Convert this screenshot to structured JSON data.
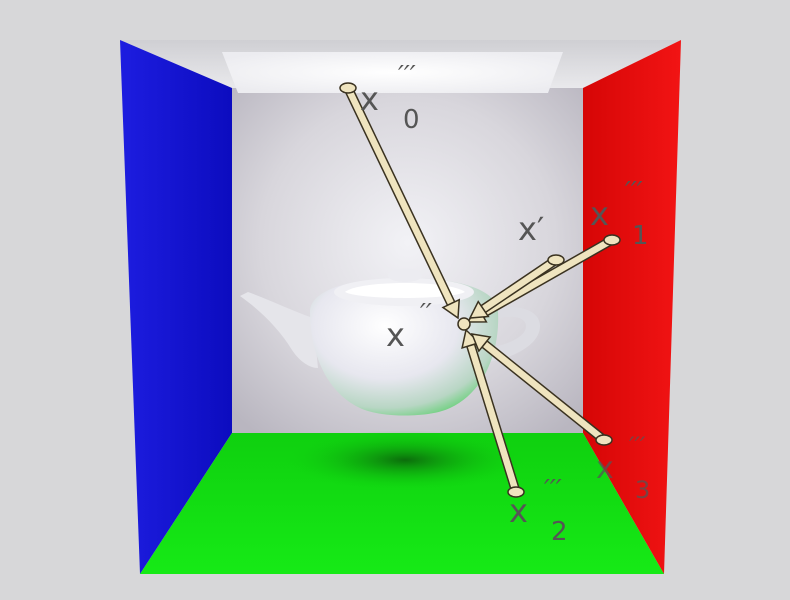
{
  "labels": {
    "x0": {
      "base": "x",
      "primes": "′′′",
      "sub": "0"
    },
    "x1": {
      "base": "x",
      "primes": "′′′",
      "sub": "1"
    },
    "x2": {
      "base": "x",
      "primes": "′′′",
      "sub": "2"
    },
    "x3": {
      "base": "x",
      "primes": "′′′",
      "sub": "3"
    },
    "xp": {
      "base": "x′"
    },
    "xpp": {
      "base": "x",
      "primes": "′′"
    }
  },
  "colors": {
    "background": "#d7d7d9",
    "left_wall": "#1a1ae6",
    "right_wall": "#e80a0a",
    "floor": "#10e010",
    "back_wall": "#e6e6ea",
    "ceiling": "#d9d9dc",
    "light": "#ffffff",
    "ray_fill": "#efe4bf",
    "ray_outline": "#3a3220"
  },
  "icons": [
    "teapot",
    "area-light",
    "ray-arrow"
  ]
}
